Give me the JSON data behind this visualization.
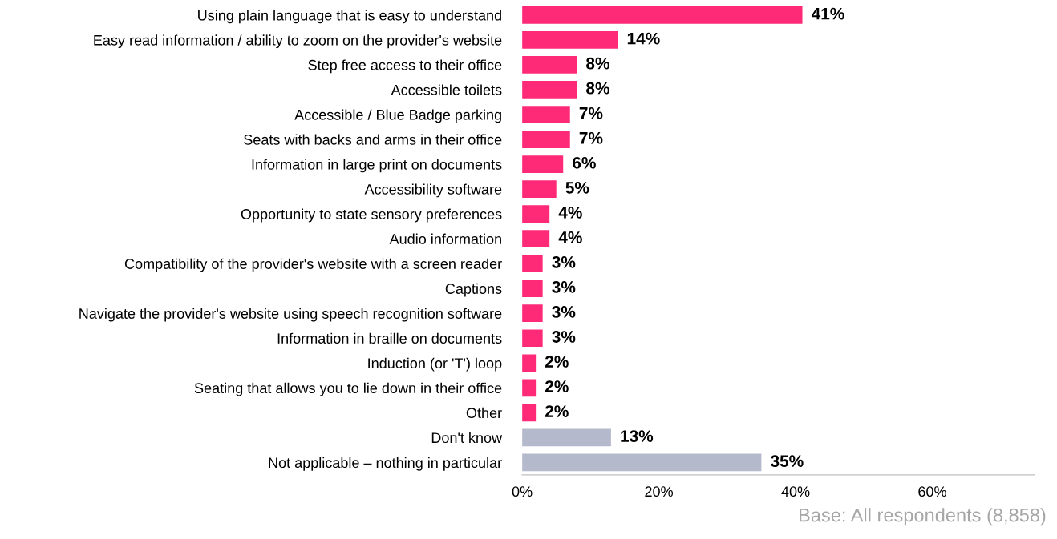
{
  "chart_data": {
    "type": "bar",
    "orientation": "horizontal",
    "categories": [
      "Using plain language that is easy to understand",
      "Easy read information / ability to zoom on the provider's website",
      "Step free access to their office",
      "Accessible toilets",
      "Accessible / Blue Badge parking",
      "Seats with backs and arms in their office",
      "Information in large print on documents",
      "Accessibility software",
      "Opportunity to state sensory preferences",
      "Audio information",
      "Compatibility of the provider's website with a screen reader",
      "Captions",
      "Navigate the provider's website using speech recognition software",
      "Information in braille on documents",
      "Induction (or 'T') loop",
      "Seating that allows you to lie down in their office",
      "Other",
      "Don't know",
      "Not applicable – nothing in particular"
    ],
    "values": [
      41,
      14,
      8,
      8,
      7,
      7,
      6,
      5,
      4,
      4,
      3,
      3,
      3,
      3,
      2,
      2,
      2,
      13,
      35
    ],
    "value_labels": [
      "41%",
      "14%",
      "8%",
      "8%",
      "7%",
      "7%",
      "6%",
      "5%",
      "4%",
      "4%",
      "3%",
      "3%",
      "3%",
      "3%",
      "2%",
      "2%",
      "2%",
      "13%",
      "35%"
    ],
    "colors": [
      "#fe2a78",
      "#fe2a78",
      "#fe2a78",
      "#fe2a78",
      "#fe2a78",
      "#fe2a78",
      "#fe2a78",
      "#fe2a78",
      "#fe2a78",
      "#fe2a78",
      "#fe2a78",
      "#fe2a78",
      "#fe2a78",
      "#fe2a78",
      "#fe2a78",
      "#fe2a78",
      "#fe2a78",
      "#b4b9cb",
      "#b4b9cb"
    ],
    "xlim": [
      0,
      75
    ],
    "xticks": [
      {
        "value": 0,
        "label": "0%"
      },
      {
        "value": 20,
        "label": "20%"
      },
      {
        "value": 40,
        "label": "40%"
      },
      {
        "value": 60,
        "label": "60%"
      }
    ],
    "grid": false,
    "legend": false,
    "annotations": [
      "Base: All respondents (8,858)"
    ]
  }
}
